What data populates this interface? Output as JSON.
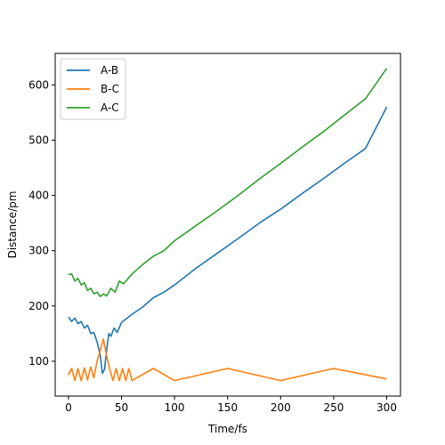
{
  "chart_data": {
    "type": "line",
    "title": "",
    "xlabel": "Time/fs",
    "ylabel": "Distance/pm",
    "xlim": [
      -12.5,
      313
    ],
    "ylim": [
      37,
      657
    ],
    "xticks": [
      0,
      50,
      100,
      150,
      200,
      250,
      300
    ],
    "yticks": [
      100,
      200,
      300,
      400,
      500,
      600
    ],
    "grid": false,
    "legend_position": "top-left",
    "series": [
      {
        "name": "A-B",
        "color": "#1f77b4",
        "x": [
          0,
          3,
          6,
          9,
          12,
          15,
          18,
          21,
          24,
          27,
          30,
          32,
          34,
          36,
          38,
          40,
          43,
          46,
          50,
          60,
          70,
          80,
          90,
          100,
          120,
          140,
          160,
          180,
          200,
          220,
          240,
          260,
          280,
          300
        ],
        "y": [
          180,
          172,
          178,
          168,
          172,
          160,
          165,
          150,
          152,
          135,
          110,
          78,
          85,
          120,
          150,
          145,
          160,
          152,
          170,
          185,
          198,
          215,
          225,
          238,
          268,
          295,
          322,
          350,
          375,
          403,
          430,
          458,
          485,
          560
        ]
      },
      {
        "name": "B-C",
        "color": "#ff7f0e",
        "x": [
          0,
          3,
          6,
          9,
          12,
          15,
          18,
          21,
          24,
          27,
          30,
          33,
          36,
          39,
          42,
          45,
          48,
          51,
          54,
          57,
          60,
          80,
          100,
          150,
          200,
          250,
          300
        ],
        "y": [
          75,
          87,
          65,
          87,
          65,
          88,
          66,
          90,
          70,
          100,
          120,
          140,
          110,
          85,
          65,
          87,
          65,
          87,
          65,
          87,
          65,
          87,
          65,
          87,
          65,
          87,
          68
        ]
      },
      {
        "name": "A-C",
        "color": "#2ca02c",
        "x": [
          0,
          3,
          6,
          9,
          12,
          15,
          18,
          21,
          24,
          27,
          30,
          33,
          36,
          40,
          44,
          48,
          52,
          60,
          70,
          80,
          90,
          100,
          120,
          140,
          160,
          180,
          200,
          220,
          240,
          260,
          280,
          300
        ],
        "y": [
          257,
          258,
          245,
          250,
          238,
          242,
          228,
          232,
          222,
          225,
          217,
          222,
          218,
          232,
          225,
          245,
          240,
          258,
          275,
          290,
          300,
          318,
          345,
          372,
          400,
          430,
          458,
          487,
          515,
          545,
          575,
          630
        ]
      }
    ]
  }
}
